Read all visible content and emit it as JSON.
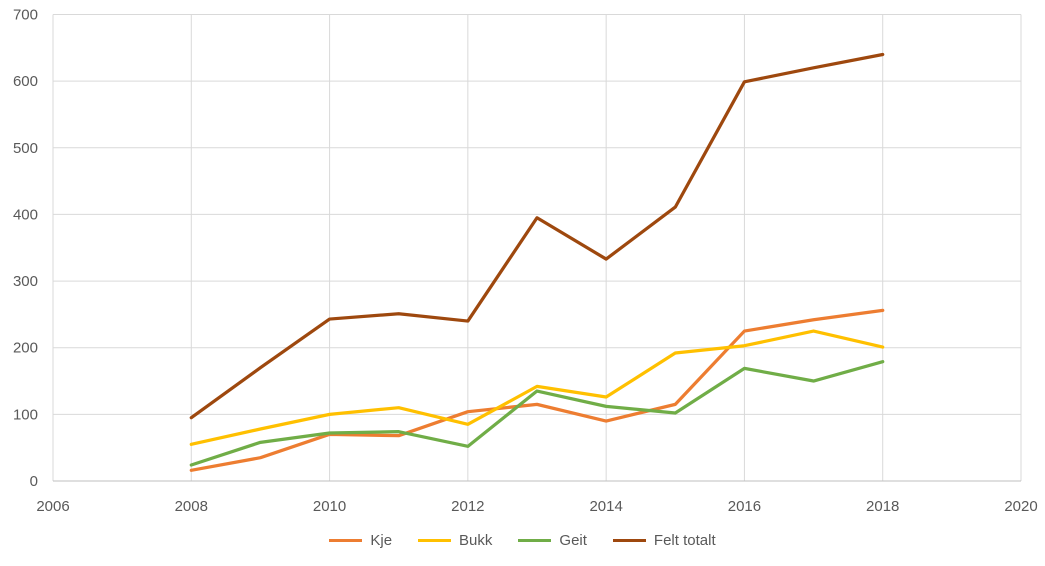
{
  "chart_data": {
    "type": "line",
    "title": "",
    "xlabel": "",
    "ylabel": "",
    "x": [
      2008,
      2009,
      2010,
      2011,
      2012,
      2013,
      2014,
      2015,
      2016,
      2017,
      2018
    ],
    "series": [
      {
        "name": "Kje",
        "color": "#ED7D31",
        "values": [
          16,
          35,
          70,
          68,
          104,
          115,
          90,
          115,
          225,
          242,
          256
        ]
      },
      {
        "name": "Bukk",
        "color": "#FFC000",
        "values": [
          55,
          78,
          100,
          110,
          85,
          142,
          126,
          192,
          203,
          225,
          201
        ]
      },
      {
        "name": "Geit",
        "color": "#70AD47",
        "values": [
          24,
          58,
          72,
          74,
          52,
          135,
          112,
          102,
          169,
          150,
          179
        ]
      },
      {
        "name": "Felt totalt",
        "color": "#9E480E",
        "values": [
          95,
          170,
          243,
          251,
          240,
          395,
          333,
          411,
          599,
          620,
          640
        ]
      }
    ],
    "xlim": [
      2006,
      2020
    ],
    "ylim": [
      0,
      700
    ],
    "xticks": [
      2006,
      2008,
      2010,
      2012,
      2014,
      2016,
      2018,
      2020
    ],
    "yticks": [
      0,
      100,
      200,
      300,
      400,
      500,
      600,
      700
    ],
    "grid": true,
    "legend_position": "bottom"
  },
  "colors": {
    "background": "#FFFFFF",
    "gridline": "#D9D9D9",
    "axis_line": "#BFBFBF",
    "tick_label": "#595959"
  }
}
